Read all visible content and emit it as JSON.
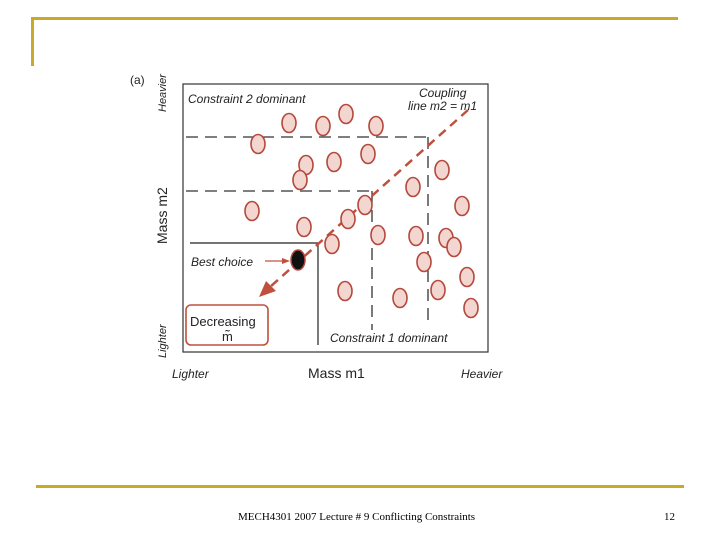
{
  "figure": {
    "panel_label": "(a)",
    "y_axis": {
      "label": "Mass m2",
      "top_label": "Heavier",
      "bottom_label": "Lighter"
    },
    "x_axis": {
      "label": "Mass m1",
      "left_label": "Lighter",
      "right_label": "Heavier"
    },
    "region_labels": {
      "constraint2": "Constraint 2 dominant",
      "constraint1": "Constraint 1 dominant"
    },
    "coupling": {
      "line1": "Coupling",
      "line2": "line m2 = m1"
    },
    "best_choice": "Best choice",
    "decreasing": {
      "line1": "Decreasing",
      "line2": "m̃"
    },
    "colors": {
      "marker_fill": "#f2d6cf",
      "marker_stroke": "#b5483c",
      "arrow": "#c0503e",
      "best_fill": "#111111"
    }
  },
  "footer": {
    "title": "MECH4301 2007 Lecture # 9 Conflicting Constraints",
    "page_number": "12"
  }
}
